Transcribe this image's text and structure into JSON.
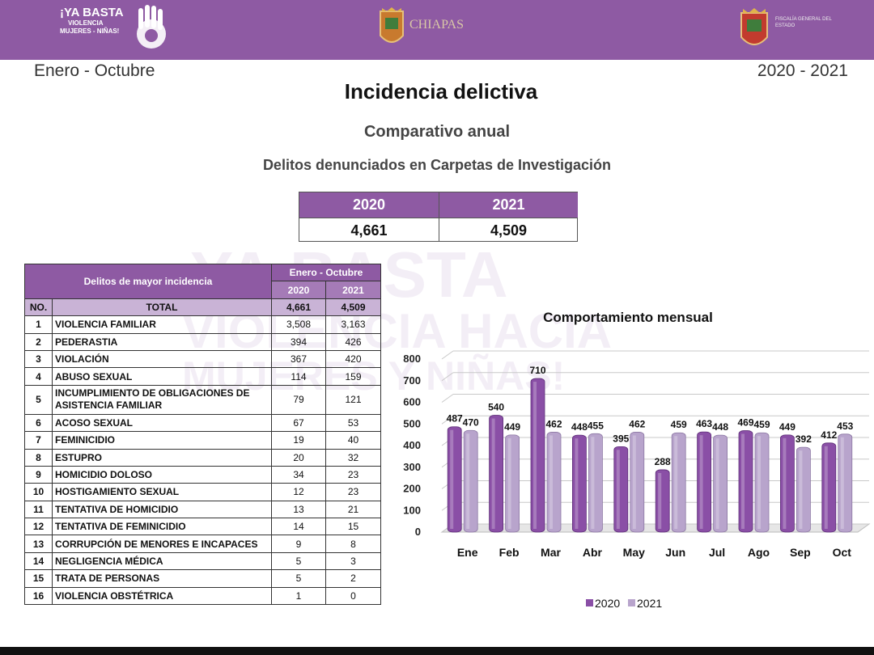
{
  "header": {
    "campaign_line1": "¡YA BASTA",
    "campaign_line2": "VIOLENCIA",
    "campaign_line3": "MUJERES - NIÑAS!",
    "state_name": "CHIAPAS",
    "prosecutor_text": "FISCALÍA GENERAL DEL ESTADO",
    "brand_color": "#8e5aa3"
  },
  "period_left": "Enero - Octubre",
  "period_right": "2020 - 2021",
  "title": "Incidencia delictiva",
  "subtitle": "Comparativo anual",
  "subtitle2": "Delitos denunciados en Carpetas de Investigación",
  "summary": {
    "year_a": "2020",
    "year_b": "2021",
    "total_a": "4,661",
    "total_b": "4,509"
  },
  "table": {
    "header_label": "Delitos de mayor incidencia",
    "period_label": "Enero - Octubre",
    "year_a": "2020",
    "year_b": "2021",
    "no_label": "NO.",
    "total_label": "TOTAL",
    "total_a": "4,661",
    "total_b": "4,509",
    "rows": [
      {
        "no": "1",
        "name": "VIOLENCIA FAMILIAR",
        "a": "3,508",
        "b": "3,163"
      },
      {
        "no": "2",
        "name": "PEDERASTIA",
        "a": "394",
        "b": "426"
      },
      {
        "no": "3",
        "name": "VIOLACIÓN",
        "a": "367",
        "b": "420"
      },
      {
        "no": "4",
        "name": "ABUSO SEXUAL",
        "a": "114",
        "b": "159"
      },
      {
        "no": "5",
        "name": "INCUMPLIMIENTO DE OBLIGACIONES DE ASISTENCIA FAMILIAR",
        "a": "79",
        "b": "121"
      },
      {
        "no": "6",
        "name": "ACOSO SEXUAL",
        "a": "67",
        "b": "53"
      },
      {
        "no": "7",
        "name": "FEMINICIDIO",
        "a": "19",
        "b": "40"
      },
      {
        "no": "8",
        "name": "ESTUPRO",
        "a": "20",
        "b": "32"
      },
      {
        "no": "9",
        "name": "HOMICIDIO DOLOSO",
        "a": "34",
        "b": "23"
      },
      {
        "no": "10",
        "name": "HOSTIGAMIENTO SEXUAL",
        "a": "12",
        "b": "23"
      },
      {
        "no": "11",
        "name": "TENTATIVA DE HOMICIDIO",
        "a": "13",
        "b": "21"
      },
      {
        "no": "12",
        "name": "TENTATIVA DE FEMINICIDIO",
        "a": "14",
        "b": "15"
      },
      {
        "no": "13",
        "name": "CORRUPCIÓN DE MENORES E INCAPACES",
        "a": "9",
        "b": "8"
      },
      {
        "no": "14",
        "name": "NEGLIGENCIA MÉDICA",
        "a": "5",
        "b": "3"
      },
      {
        "no": "15",
        "name": "TRATA DE PERSONAS",
        "a": "5",
        "b": "2"
      },
      {
        "no": "16",
        "name": "VIOLENCIA OBSTÉTRICA",
        "a": "1",
        "b": "0"
      }
    ]
  },
  "watermark": {
    "line1": "YA BASTA",
    "line2": "VIOLENCIA HACIA",
    "line3": "MUJERES Y NIÑAS!"
  },
  "chart_data": {
    "type": "bar",
    "title": "Comportamiento mensual",
    "categories": [
      "Ene",
      "Feb",
      "Mar",
      "Abr",
      "May",
      "Jun",
      "Jul",
      "Ago",
      "Sep",
      "Oct"
    ],
    "series": [
      {
        "name": "2020",
        "values": [
          487,
          540,
          710,
          448,
          395,
          288,
          463,
          469,
          449,
          412
        ],
        "color": "#8a4fa6"
      },
      {
        "name": "2021",
        "values": [
          470,
          449,
          462,
          455,
          462,
          459,
          448,
          459,
          392,
          453
        ],
        "color": "#b8a4cc"
      }
    ],
    "ylim": [
      0,
      800
    ],
    "yticks": [
      0,
      100,
      200,
      300,
      400,
      500,
      600,
      700,
      800
    ],
    "grid": true,
    "legend": "bottom"
  }
}
